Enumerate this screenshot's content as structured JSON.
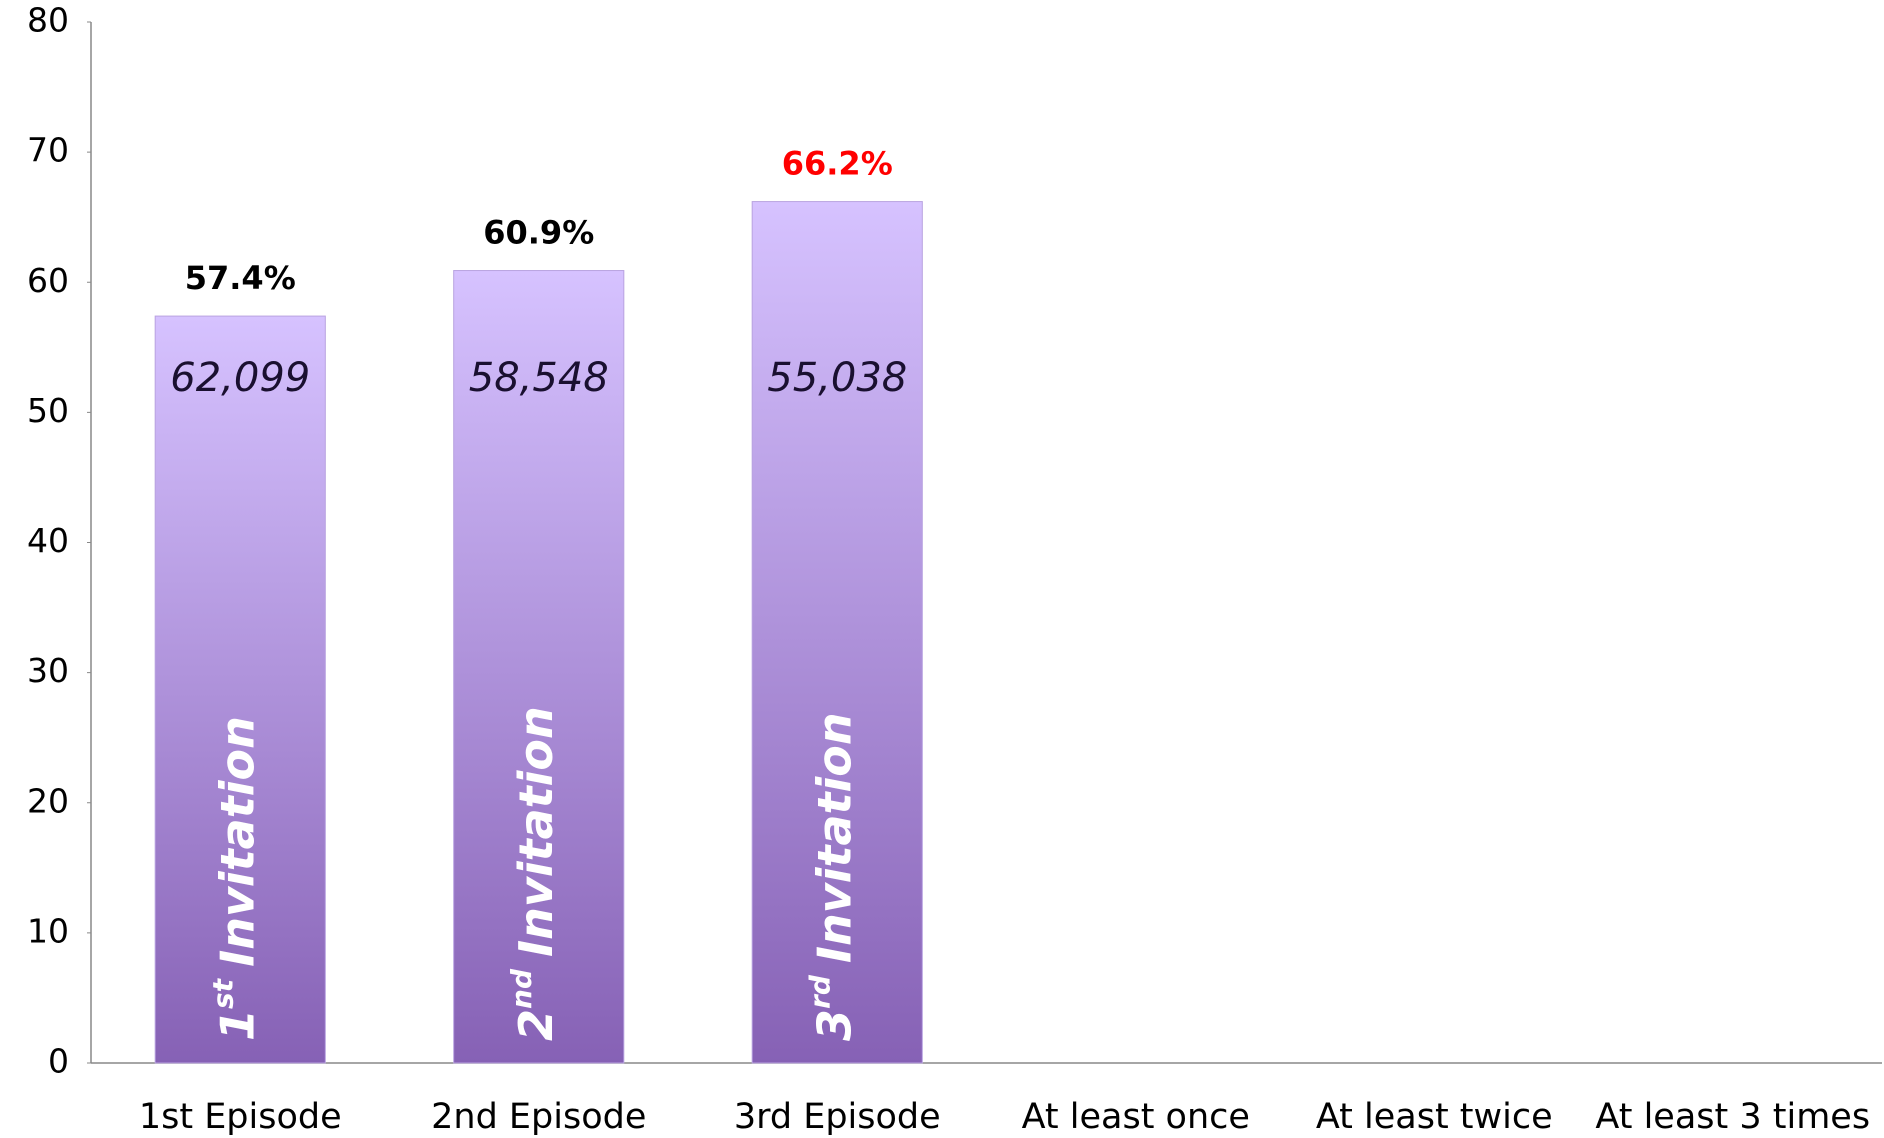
{
  "chart_data": {
    "type": "bar",
    "categories": [
      "1st Episode",
      "2nd Episode",
      "3rd Episode",
      "At least once",
      "At least twice",
      "At least 3 times"
    ],
    "values": [
      57.4,
      60.9,
      66.2,
      null,
      null,
      null
    ],
    "value_labels": [
      "57.4%",
      "60.9%",
      "66.2%",
      null,
      null,
      null
    ],
    "value_label_colors": [
      "#000000",
      "#000000",
      "#ff0000",
      null,
      null,
      null
    ],
    "bar_counts": [
      "62,099",
      "58,548",
      "55,038"
    ],
    "bar_titles": [
      {
        "ordinal": "1",
        "suffix": "st",
        "label": "Invitation"
      },
      {
        "ordinal": "2",
        "suffix": "nd",
        "label": "Invitation"
      },
      {
        "ordinal": "3",
        "suffix": "rd",
        "label": "Invitation"
      }
    ],
    "color": [
      "#d6c2ff",
      "#8661b5"
    ],
    "ylim": [
      0,
      80
    ],
    "yticks": [
      0,
      10,
      20,
      30,
      40,
      50,
      60,
      70,
      80
    ],
    "grid": false
  }
}
